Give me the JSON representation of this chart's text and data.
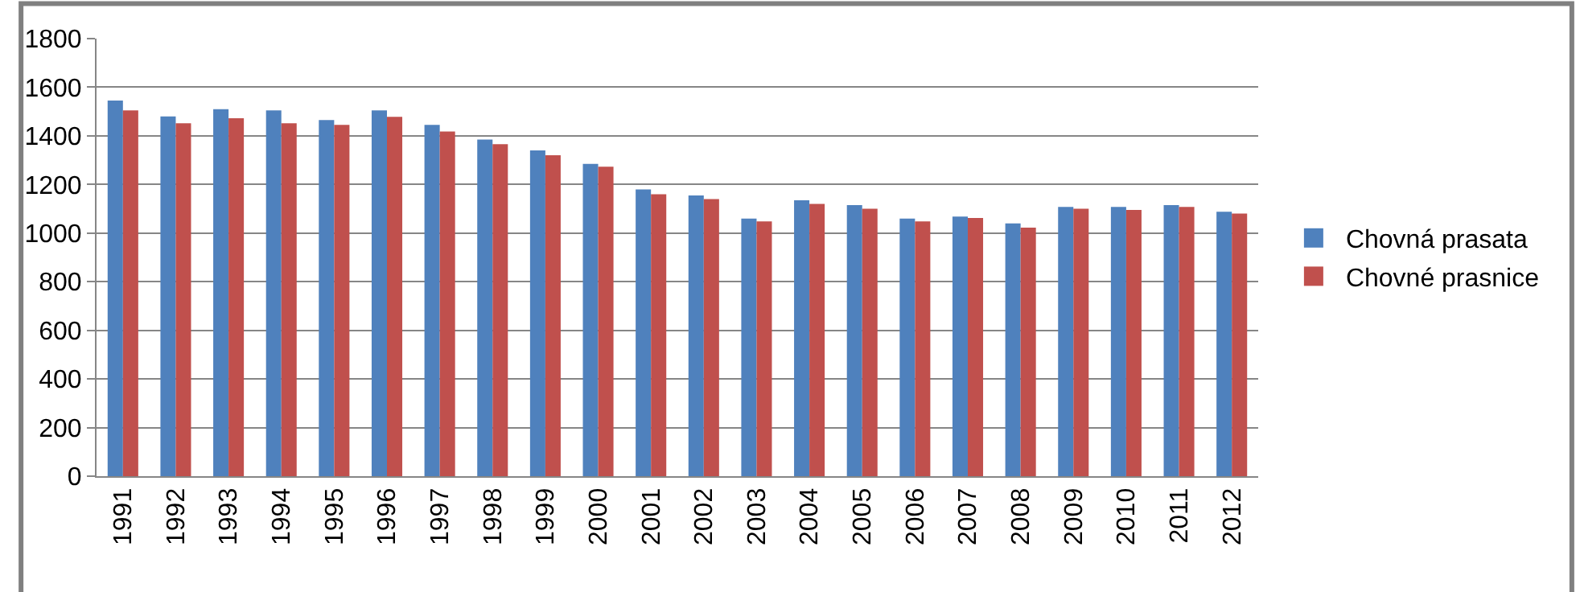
{
  "chart_data": {
    "type": "bar",
    "categories": [
      "1991",
      "1992",
      "1993",
      "1994",
      "1995",
      "1996",
      "1997",
      "1998",
      "1999",
      "2000",
      "2001",
      "2002",
      "2003",
      "2004",
      "2005",
      "2006",
      "2007",
      "2008",
      "2009",
      "2010",
      "2011",
      "2012"
    ],
    "series": [
      {
        "name": "Chovná prasata",
        "color": "#4f81bd",
        "values": [
          1545,
          1480,
          1510,
          1505,
          1465,
          1505,
          1445,
          1385,
          1340,
          1285,
          1180,
          1155,
          1060,
          1135,
          1115,
          1060,
          1068,
          1040,
          1108,
          1108,
          1115,
          1088
        ]
      },
      {
        "name": "Chovné prasnice",
        "color": "#c0504d",
        "values": [
          1505,
          1452,
          1472,
          1452,
          1445,
          1478,
          1418,
          1366,
          1320,
          1273,
          1160,
          1140,
          1048,
          1120,
          1100,
          1048,
          1062,
          1022,
          1100,
          1095,
          1108,
          1080
        ]
      }
    ],
    "ylim": [
      0,
      1800
    ],
    "yticks": [
      0,
      200,
      400,
      600,
      800,
      1000,
      1200,
      1400,
      1600,
      1800
    ],
    "grid": "y",
    "legend": "right"
  }
}
